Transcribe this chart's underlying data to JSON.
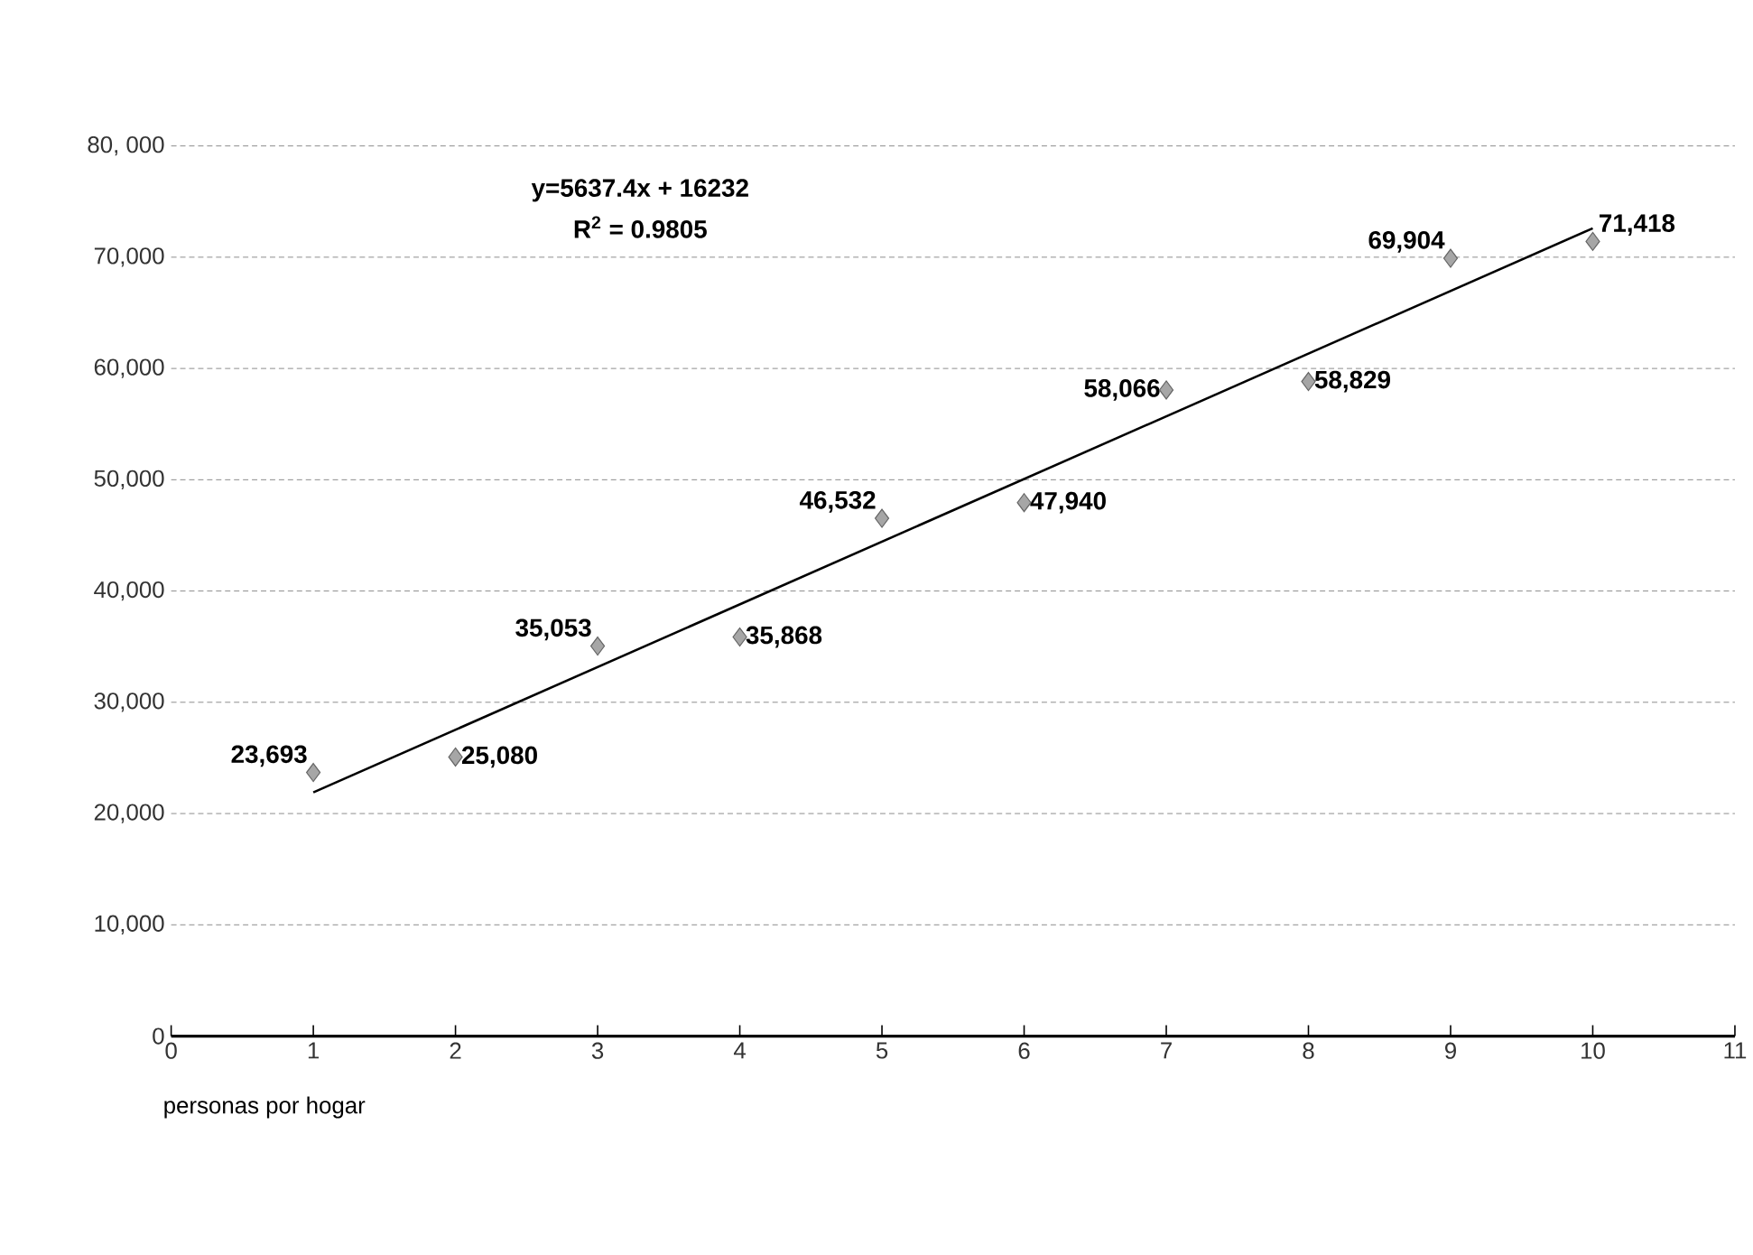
{
  "chart_data": {
    "type": "scatter",
    "xlabel": "personas por hogar",
    "x": [
      1,
      2,
      3,
      4,
      5,
      6,
      7,
      8,
      9,
      10
    ],
    "series": [
      {
        "color": "#a6a6a6",
        "marker": "diamond",
        "values": [
          23693,
          25080,
          35053,
          35868,
          46532,
          47940,
          58066,
          58829,
          69904,
          71418
        ],
        "value_labels": [
          "23,693",
          "25,080",
          "35,053",
          "35,868",
          "46,532",
          "47,940",
          "58,066",
          "58,829",
          "69,904",
          "71,418"
        ]
      },
      {
        "type": "line",
        "color": "#000000",
        "x": [
          1,
          10
        ],
        "values": [
          21900,
          72600
        ]
      }
    ],
    "annotations": [
      "y=5637.4x + 16232",
      "R$^{2}$ = 0.9805"
    ],
    "xlim": [
      0,
      11
    ],
    "ylim": [
      0,
      80000
    ],
    "xticks": [
      0,
      1,
      2,
      3,
      4,
      5,
      6,
      7,
      8,
      9,
      10,
      11
    ],
    "yticks": [
      0,
      {
        "value": 10000,
        "label": "10,000"
      },
      {
        "value": 20000,
        "label": "20,000"
      },
      {
        "value": 30000,
        "label": "30,000"
      },
      {
        "value": 40000,
        "label": "40,000"
      },
      {
        "value": 50000,
        "label": "50,000"
      },
      {
        "value": 60000,
        "label": "60,000"
      },
      {
        "value": 70000,
        "label": "70,000"
      },
      {
        "value": 80000,
        "label": "80, 000"
      }
    ],
    "grid": "y"
  }
}
